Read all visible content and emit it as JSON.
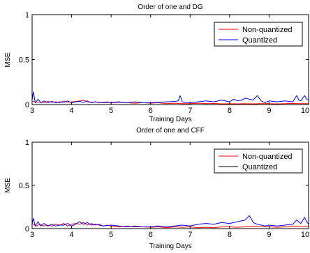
{
  "chart_data": [
    {
      "type": "line",
      "title": "Order of one and DG",
      "xlabel": "Training Days",
      "ylabel": "MSE",
      "xlim": [
        3,
        10
      ],
      "ylim": [
        0,
        1
      ],
      "xticks": [
        "3",
        "4",
        "5",
        "6",
        "7",
        "8",
        "9",
        "10"
      ],
      "yticks": [
        "0",
        "0.5",
        "1"
      ],
      "grid": false,
      "legend": "top-right",
      "series": [
        {
          "name": "Non-quantized",
          "color": "#ff0000",
          "x": [
            3.0,
            3.1,
            3.2,
            3.3,
            3.4,
            3.5,
            3.6,
            3.7,
            3.8,
            3.9,
            4.0,
            4.1,
            4.2,
            4.3,
            4.4,
            4.5,
            4.6,
            4.7,
            4.8,
            4.9,
            5.0,
            5.2,
            5.4,
            5.6,
            5.8,
            6.0,
            6.2,
            6.4,
            6.6,
            6.8,
            7.0,
            7.2,
            7.4,
            7.6,
            7.8,
            8.0,
            8.2,
            8.4,
            8.6,
            8.8,
            9.0,
            9.2,
            9.4,
            9.6,
            9.8,
            10.0
          ],
          "y": [
            0.04,
            0.025,
            0.03,
            0.02,
            0.035,
            0.025,
            0.03,
            0.02,
            0.04,
            0.025,
            0.03,
            0.035,
            0.04,
            0.05,
            0.03,
            0.025,
            0.03,
            0.02,
            0.025,
            0.03,
            0.02,
            0.025,
            0.02,
            0.015,
            0.02,
            0.015,
            0.02,
            0.01,
            0.015,
            0.01,
            0.01,
            0.015,
            0.01,
            0.012,
            0.008,
            0.01,
            0.008,
            0.01,
            0.008,
            0.01,
            0.01,
            0.008,
            0.01,
            0.012,
            0.01,
            0.01
          ]
        },
        {
          "name": "Quantized",
          "color": "#0000ff",
          "x": [
            3.0,
            3.03,
            3.08,
            3.15,
            3.22,
            3.3,
            3.4,
            3.5,
            3.6,
            3.7,
            3.8,
            3.9,
            4.0,
            4.1,
            4.2,
            4.3,
            4.4,
            4.5,
            4.6,
            4.8,
            5.0,
            5.2,
            5.4,
            5.6,
            5.8,
            6.0,
            6.2,
            6.4,
            6.6,
            6.7,
            6.75,
            6.8,
            7.0,
            7.2,
            7.4,
            7.6,
            7.8,
            8.0,
            8.1,
            8.2,
            8.3,
            8.4,
            8.5,
            8.6,
            8.7,
            8.8,
            8.9,
            9.0,
            9.2,
            9.4,
            9.6,
            9.7,
            9.75,
            9.8,
            9.9,
            9.95,
            10.0
          ],
          "y": [
            0.05,
            0.14,
            0.02,
            0.06,
            0.02,
            0.04,
            0.02,
            0.035,
            0.02,
            0.03,
            0.025,
            0.04,
            0.02,
            0.03,
            0.035,
            0.025,
            0.04,
            0.02,
            0.03,
            0.02,
            0.025,
            0.03,
            0.02,
            0.03,
            0.02,
            0.02,
            0.025,
            0.03,
            0.035,
            0.04,
            0.1,
            0.03,
            0.02,
            0.03,
            0.04,
            0.03,
            0.05,
            0.03,
            0.06,
            0.04,
            0.05,
            0.07,
            0.06,
            0.05,
            0.1,
            0.04,
            0.02,
            0.04,
            0.03,
            0.04,
            0.03,
            0.1,
            0.05,
            0.04,
            0.1,
            0.06,
            0.05
          ]
        }
      ]
    },
    {
      "type": "line",
      "title": "Order of one and CFF",
      "xlabel": "Training Days",
      "ylabel": "MSE",
      "xlim": [
        3,
        10
      ],
      "ylim": [
        0,
        1
      ],
      "xticks": [
        "3",
        "4",
        "5",
        "6",
        "7",
        "8",
        "9",
        "10"
      ],
      "yticks": [
        "0",
        "0.5",
        "1"
      ],
      "grid": false,
      "legend": "top-right",
      "series": [
        {
          "name": "Non-quantized",
          "color": "#ff0000",
          "x": [
            3.0,
            3.1,
            3.2,
            3.3,
            3.4,
            3.5,
            3.6,
            3.7,
            3.8,
            3.9,
            4.0,
            4.1,
            4.2,
            4.3,
            4.4,
            4.5,
            4.6,
            4.7,
            4.8,
            4.9,
            5.0,
            5.2,
            5.4,
            5.6,
            5.8,
            6.0,
            6.2,
            6.4,
            6.6,
            6.8,
            7.0,
            7.2,
            7.4,
            7.6,
            7.8,
            8.0,
            8.2,
            8.4,
            8.6,
            8.8,
            9.0,
            9.2,
            9.4,
            9.6,
            9.8,
            10.0
          ],
          "y": [
            0.06,
            0.03,
            0.05,
            0.03,
            0.04,
            0.03,
            0.05,
            0.04,
            0.06,
            0.03,
            0.05,
            0.06,
            0.05,
            0.07,
            0.04,
            0.06,
            0.04,
            0.05,
            0.03,
            0.04,
            0.03,
            0.02,
            0.03,
            0.02,
            0.02,
            0.015,
            0.02,
            0.01,
            0.02,
            0.015,
            0.02,
            0.01,
            0.015,
            0.01,
            0.02,
            0.02,
            0.015,
            0.02,
            0.03,
            0.02,
            0.02,
            0.015,
            0.02,
            0.03,
            0.02,
            0.03
          ]
        },
        {
          "name": "Quantized",
          "color": "#0000ff",
          "x": [
            3.0,
            3.03,
            3.08,
            3.15,
            3.22,
            3.3,
            3.4,
            3.5,
            3.6,
            3.7,
            3.8,
            3.9,
            4.0,
            4.1,
            4.2,
            4.3,
            4.4,
            4.5,
            4.6,
            4.8,
            5.0,
            5.2,
            5.4,
            5.6,
            5.8,
            6.0,
            6.2,
            6.4,
            6.6,
            6.8,
            7.0,
            7.2,
            7.4,
            7.6,
            7.8,
            8.0,
            8.2,
            8.4,
            8.5,
            8.6,
            8.7,
            8.8,
            8.9,
            9.0,
            9.2,
            9.4,
            9.6,
            9.7,
            9.8,
            9.9,
            9.95,
            10.0
          ],
          "y": [
            0.05,
            0.12,
            0.03,
            0.08,
            0.03,
            0.06,
            0.03,
            0.05,
            0.03,
            0.04,
            0.04,
            0.06,
            0.03,
            0.05,
            0.08,
            0.05,
            0.07,
            0.04,
            0.05,
            0.03,
            0.04,
            0.03,
            0.02,
            0.03,
            0.02,
            0.02,
            0.03,
            0.02,
            0.03,
            0.04,
            0.03,
            0.05,
            0.06,
            0.05,
            0.07,
            0.06,
            0.08,
            0.1,
            0.15,
            0.07,
            0.05,
            0.04,
            0.03,
            0.04,
            0.03,
            0.04,
            0.05,
            0.1,
            0.06,
            0.13,
            0.08,
            0.05
          ]
        }
      ]
    }
  ]
}
